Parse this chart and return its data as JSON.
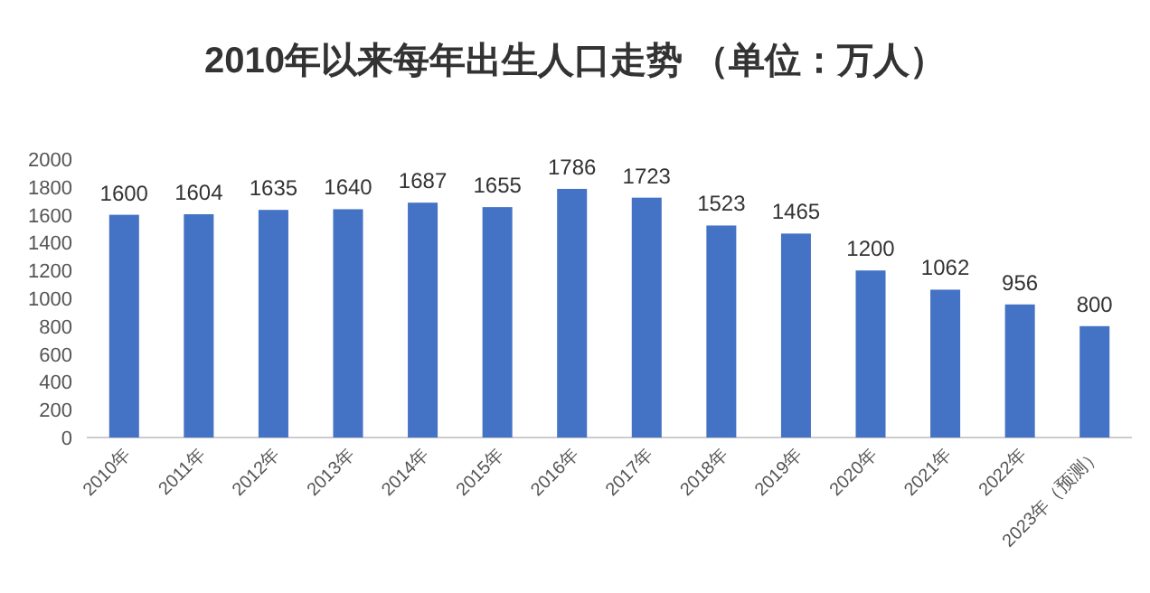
{
  "chart_data": {
    "type": "bar",
    "title": "2010年以来每年出生人口走势 （单位：万人）",
    "categories": [
      "2010年",
      "2011年",
      "2012年",
      "2013年",
      "2014年",
      "2015年",
      "2016年",
      "2017年",
      "2018年",
      "2019年",
      "2020年",
      "2021年",
      "2022年",
      "2023年（预测）"
    ],
    "values": [
      1600,
      1604,
      1635,
      1640,
      1687,
      1655,
      1786,
      1723,
      1523,
      1465,
      1200,
      1062,
      956,
      800
    ],
    "color": "#4472c4",
    "ylim": [
      0,
      2000
    ],
    "yticks": [
      0,
      200,
      400,
      600,
      800,
      1000,
      1200,
      1400,
      1600,
      1800,
      2000
    ],
    "grid": false,
    "data_labels": true
  }
}
